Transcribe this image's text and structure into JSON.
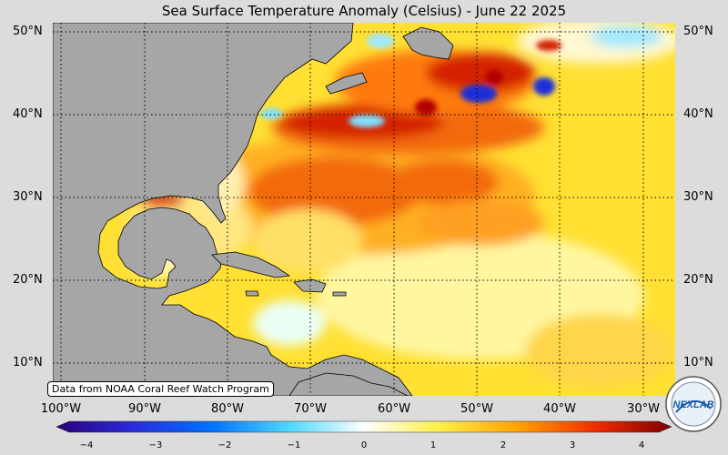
{
  "title": "Sea Surface Temperature Anomaly (Celsius) - June 22 2025",
  "map": {
    "lat_labels": [
      "50°N",
      "40°N",
      "30°N",
      "20°N",
      "10°N"
    ],
    "lon_labels": [
      "100°W",
      "90°W",
      "80°W",
      "70°W",
      "60°W",
      "50°W",
      "40°W",
      "30°W"
    ],
    "colors": {
      "land": "#a6a6a6",
      "warm": "#ff8c00",
      "hot": "#d40000",
      "mild": "#ffe033",
      "cool": "#5ad8ff",
      "cold": "#1a2fd9"
    }
  },
  "credit": "Data from NOAA Coral Reef Watch Program",
  "colorbar": {
    "ticks": [
      "−4",
      "−3",
      "−2",
      "−1",
      "0",
      "1",
      "2",
      "3",
      "4"
    ],
    "range": [
      -4,
      4
    ]
  },
  "logo": {
    "text": "NEXLAB"
  }
}
